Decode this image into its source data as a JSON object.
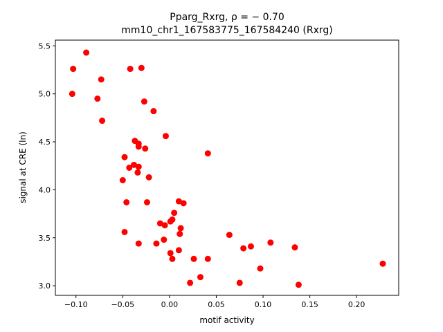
{
  "chart_data": {
    "type": "scatter",
    "title_line1": "Pparg_Rxrg, ρ = − 0.70",
    "title_line2": "mm10_chr1_167583775_167584240 (Rxrg)",
    "xlabel": "motif activity",
    "ylabel": "signal at CRE (ln)",
    "xlim": [
      -0.122,
      0.245
    ],
    "ylim": [
      2.9,
      5.56
    ],
    "xticks": [
      -0.1,
      -0.05,
      0.0,
      0.05,
      0.1,
      0.15,
      0.2
    ],
    "xtick_labels": [
      "−0.10",
      "−0.05",
      "0.00",
      "0.05",
      "0.10",
      "0.15",
      "0.20"
    ],
    "yticks": [
      3.0,
      3.5,
      4.0,
      4.5,
      5.0,
      5.5
    ],
    "ytick_labels": [
      "3.0",
      "3.5",
      "4.0",
      "4.5",
      "5.0",
      "5.5"
    ],
    "marker_color": "#ff0000",
    "grid": false,
    "legend": "none",
    "points": [
      {
        "x": -0.089,
        "y": 5.43
      },
      {
        "x": -0.103,
        "y": 5.26
      },
      {
        "x": -0.042,
        "y": 5.26
      },
      {
        "x": -0.03,
        "y": 5.27
      },
      {
        "x": -0.073,
        "y": 5.15
      },
      {
        "x": -0.104,
        "y": 5.0
      },
      {
        "x": -0.077,
        "y": 4.95
      },
      {
        "x": -0.027,
        "y": 4.92
      },
      {
        "x": -0.017,
        "y": 4.82
      },
      {
        "x": -0.072,
        "y": 4.72
      },
      {
        "x": -0.004,
        "y": 4.56
      },
      {
        "x": -0.037,
        "y": 4.51
      },
      {
        "x": -0.033,
        "y": 4.48
      },
      {
        "x": -0.033,
        "y": 4.45
      },
      {
        "x": -0.026,
        "y": 4.43
      },
      {
        "x": 0.041,
        "y": 4.38
      },
      {
        "x": -0.048,
        "y": 4.34
      },
      {
        "x": -0.038,
        "y": 4.26
      },
      {
        "x": -0.043,
        "y": 4.23
      },
      {
        "x": -0.033,
        "y": 4.24
      },
      {
        "x": -0.034,
        "y": 4.18
      },
      {
        "x": -0.022,
        "y": 4.13
      },
      {
        "x": -0.05,
        "y": 4.1
      },
      {
        "x": -0.046,
        "y": 3.87
      },
      {
        "x": -0.024,
        "y": 3.87
      },
      {
        "x": 0.01,
        "y": 3.88
      },
      {
        "x": 0.015,
        "y": 3.86
      },
      {
        "x": 0.005,
        "y": 3.76
      },
      {
        "x": 0.003,
        "y": 3.69
      },
      {
        "x": 0.001,
        "y": 3.67
      },
      {
        "x": -0.01,
        "y": 3.65
      },
      {
        "x": -0.005,
        "y": 3.63
      },
      {
        "x": 0.012,
        "y": 3.6
      },
      {
        "x": -0.048,
        "y": 3.56
      },
      {
        "x": 0.011,
        "y": 3.54
      },
      {
        "x": 0.064,
        "y": 3.53
      },
      {
        "x": -0.006,
        "y": 3.48
      },
      {
        "x": -0.033,
        "y": 3.44
      },
      {
        "x": -0.014,
        "y": 3.44
      },
      {
        "x": 0.108,
        "y": 3.45
      },
      {
        "x": 0.087,
        "y": 3.41
      },
      {
        "x": 0.079,
        "y": 3.39
      },
      {
        "x": 0.134,
        "y": 3.4
      },
      {
        "x": 0.01,
        "y": 3.37
      },
      {
        "x": 0.001,
        "y": 3.34
      },
      {
        "x": 0.003,
        "y": 3.28
      },
      {
        "x": 0.026,
        "y": 3.28
      },
      {
        "x": 0.041,
        "y": 3.28
      },
      {
        "x": 0.228,
        "y": 3.23
      },
      {
        "x": 0.097,
        "y": 3.18
      },
      {
        "x": 0.033,
        "y": 3.09
      },
      {
        "x": 0.022,
        "y": 3.03
      },
      {
        "x": 0.075,
        "y": 3.03
      },
      {
        "x": 0.138,
        "y": 3.01
      }
    ]
  }
}
